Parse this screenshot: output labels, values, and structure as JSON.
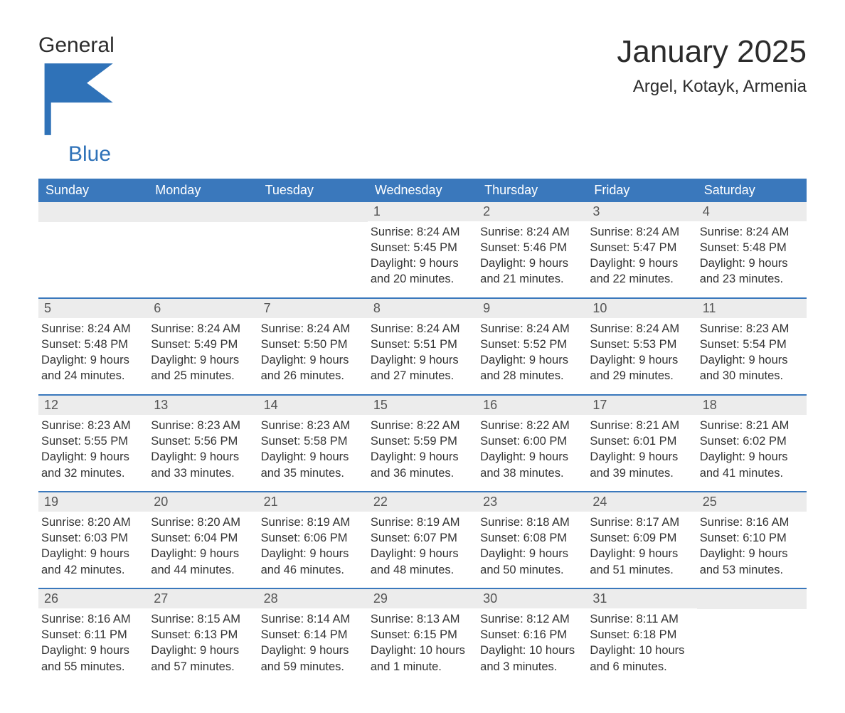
{
  "brand": {
    "word1": "General",
    "word2": "Blue",
    "logo_color": "#2f72b8",
    "text_color": "#2c2c2c"
  },
  "header": {
    "month_title": "January 2025",
    "location": "Argel, Kotayk, Armenia"
  },
  "styling": {
    "page_background": "#ffffff",
    "header_band_color": "#3a78bc",
    "header_band_text_color": "#ffffff",
    "day_number_band_color": "#ececec",
    "day_number_text_color": "#555555",
    "body_text_color": "#333333",
    "week_separator_color": "#3a78bc",
    "month_title_fontsize": 44,
    "location_fontsize": 24,
    "weekday_fontsize": 18,
    "daynum_fontsize": 18,
    "body_fontsize": 16.5,
    "columns": 7,
    "rows": 5
  },
  "weekdays": [
    "Sunday",
    "Monday",
    "Tuesday",
    "Wednesday",
    "Thursday",
    "Friday",
    "Saturday"
  ],
  "weeks": [
    [
      {
        "day": "",
        "sunrise": "",
        "sunset": "",
        "daylight1": "",
        "daylight2": ""
      },
      {
        "day": "",
        "sunrise": "",
        "sunset": "",
        "daylight1": "",
        "daylight2": ""
      },
      {
        "day": "",
        "sunrise": "",
        "sunset": "",
        "daylight1": "",
        "daylight2": ""
      },
      {
        "day": "1",
        "sunrise": "Sunrise: 8:24 AM",
        "sunset": "Sunset: 5:45 PM",
        "daylight1": "Daylight: 9 hours",
        "daylight2": "and 20 minutes."
      },
      {
        "day": "2",
        "sunrise": "Sunrise: 8:24 AM",
        "sunset": "Sunset: 5:46 PM",
        "daylight1": "Daylight: 9 hours",
        "daylight2": "and 21 minutes."
      },
      {
        "day": "3",
        "sunrise": "Sunrise: 8:24 AM",
        "sunset": "Sunset: 5:47 PM",
        "daylight1": "Daylight: 9 hours",
        "daylight2": "and 22 minutes."
      },
      {
        "day": "4",
        "sunrise": "Sunrise: 8:24 AM",
        "sunset": "Sunset: 5:48 PM",
        "daylight1": "Daylight: 9 hours",
        "daylight2": "and 23 minutes."
      }
    ],
    [
      {
        "day": "5",
        "sunrise": "Sunrise: 8:24 AM",
        "sunset": "Sunset: 5:48 PM",
        "daylight1": "Daylight: 9 hours",
        "daylight2": "and 24 minutes."
      },
      {
        "day": "6",
        "sunrise": "Sunrise: 8:24 AM",
        "sunset": "Sunset: 5:49 PM",
        "daylight1": "Daylight: 9 hours",
        "daylight2": "and 25 minutes."
      },
      {
        "day": "7",
        "sunrise": "Sunrise: 8:24 AM",
        "sunset": "Sunset: 5:50 PM",
        "daylight1": "Daylight: 9 hours",
        "daylight2": "and 26 minutes."
      },
      {
        "day": "8",
        "sunrise": "Sunrise: 8:24 AM",
        "sunset": "Sunset: 5:51 PM",
        "daylight1": "Daylight: 9 hours",
        "daylight2": "and 27 minutes."
      },
      {
        "day": "9",
        "sunrise": "Sunrise: 8:24 AM",
        "sunset": "Sunset: 5:52 PM",
        "daylight1": "Daylight: 9 hours",
        "daylight2": "and 28 minutes."
      },
      {
        "day": "10",
        "sunrise": "Sunrise: 8:24 AM",
        "sunset": "Sunset: 5:53 PM",
        "daylight1": "Daylight: 9 hours",
        "daylight2": "and 29 minutes."
      },
      {
        "day": "11",
        "sunrise": "Sunrise: 8:23 AM",
        "sunset": "Sunset: 5:54 PM",
        "daylight1": "Daylight: 9 hours",
        "daylight2": "and 30 minutes."
      }
    ],
    [
      {
        "day": "12",
        "sunrise": "Sunrise: 8:23 AM",
        "sunset": "Sunset: 5:55 PM",
        "daylight1": "Daylight: 9 hours",
        "daylight2": "and 32 minutes."
      },
      {
        "day": "13",
        "sunrise": "Sunrise: 8:23 AM",
        "sunset": "Sunset: 5:56 PM",
        "daylight1": "Daylight: 9 hours",
        "daylight2": "and 33 minutes."
      },
      {
        "day": "14",
        "sunrise": "Sunrise: 8:23 AM",
        "sunset": "Sunset: 5:58 PM",
        "daylight1": "Daylight: 9 hours",
        "daylight2": "and 35 minutes."
      },
      {
        "day": "15",
        "sunrise": "Sunrise: 8:22 AM",
        "sunset": "Sunset: 5:59 PM",
        "daylight1": "Daylight: 9 hours",
        "daylight2": "and 36 minutes."
      },
      {
        "day": "16",
        "sunrise": "Sunrise: 8:22 AM",
        "sunset": "Sunset: 6:00 PM",
        "daylight1": "Daylight: 9 hours",
        "daylight2": "and 38 minutes."
      },
      {
        "day": "17",
        "sunrise": "Sunrise: 8:21 AM",
        "sunset": "Sunset: 6:01 PM",
        "daylight1": "Daylight: 9 hours",
        "daylight2": "and 39 minutes."
      },
      {
        "day": "18",
        "sunrise": "Sunrise: 8:21 AM",
        "sunset": "Sunset: 6:02 PM",
        "daylight1": "Daylight: 9 hours",
        "daylight2": "and 41 minutes."
      }
    ],
    [
      {
        "day": "19",
        "sunrise": "Sunrise: 8:20 AM",
        "sunset": "Sunset: 6:03 PM",
        "daylight1": "Daylight: 9 hours",
        "daylight2": "and 42 minutes."
      },
      {
        "day": "20",
        "sunrise": "Sunrise: 8:20 AM",
        "sunset": "Sunset: 6:04 PM",
        "daylight1": "Daylight: 9 hours",
        "daylight2": "and 44 minutes."
      },
      {
        "day": "21",
        "sunrise": "Sunrise: 8:19 AM",
        "sunset": "Sunset: 6:06 PM",
        "daylight1": "Daylight: 9 hours",
        "daylight2": "and 46 minutes."
      },
      {
        "day": "22",
        "sunrise": "Sunrise: 8:19 AM",
        "sunset": "Sunset: 6:07 PM",
        "daylight1": "Daylight: 9 hours",
        "daylight2": "and 48 minutes."
      },
      {
        "day": "23",
        "sunrise": "Sunrise: 8:18 AM",
        "sunset": "Sunset: 6:08 PM",
        "daylight1": "Daylight: 9 hours",
        "daylight2": "and 50 minutes."
      },
      {
        "day": "24",
        "sunrise": "Sunrise: 8:17 AM",
        "sunset": "Sunset: 6:09 PM",
        "daylight1": "Daylight: 9 hours",
        "daylight2": "and 51 minutes."
      },
      {
        "day": "25",
        "sunrise": "Sunrise: 8:16 AM",
        "sunset": "Sunset: 6:10 PM",
        "daylight1": "Daylight: 9 hours",
        "daylight2": "and 53 minutes."
      }
    ],
    [
      {
        "day": "26",
        "sunrise": "Sunrise: 8:16 AM",
        "sunset": "Sunset: 6:11 PM",
        "daylight1": "Daylight: 9 hours",
        "daylight2": "and 55 minutes."
      },
      {
        "day": "27",
        "sunrise": "Sunrise: 8:15 AM",
        "sunset": "Sunset: 6:13 PM",
        "daylight1": "Daylight: 9 hours",
        "daylight2": "and 57 minutes."
      },
      {
        "day": "28",
        "sunrise": "Sunrise: 8:14 AM",
        "sunset": "Sunset: 6:14 PM",
        "daylight1": "Daylight: 9 hours",
        "daylight2": "and 59 minutes."
      },
      {
        "day": "29",
        "sunrise": "Sunrise: 8:13 AM",
        "sunset": "Sunset: 6:15 PM",
        "daylight1": "Daylight: 10 hours",
        "daylight2": "and 1 minute."
      },
      {
        "day": "30",
        "sunrise": "Sunrise: 8:12 AM",
        "sunset": "Sunset: 6:16 PM",
        "daylight1": "Daylight: 10 hours",
        "daylight2": "and 3 minutes."
      },
      {
        "day": "31",
        "sunrise": "Sunrise: 8:11 AM",
        "sunset": "Sunset: 6:18 PM",
        "daylight1": "Daylight: 10 hours",
        "daylight2": "and 6 minutes."
      },
      {
        "day": "",
        "sunrise": "",
        "sunset": "",
        "daylight1": "",
        "daylight2": ""
      }
    ]
  ]
}
